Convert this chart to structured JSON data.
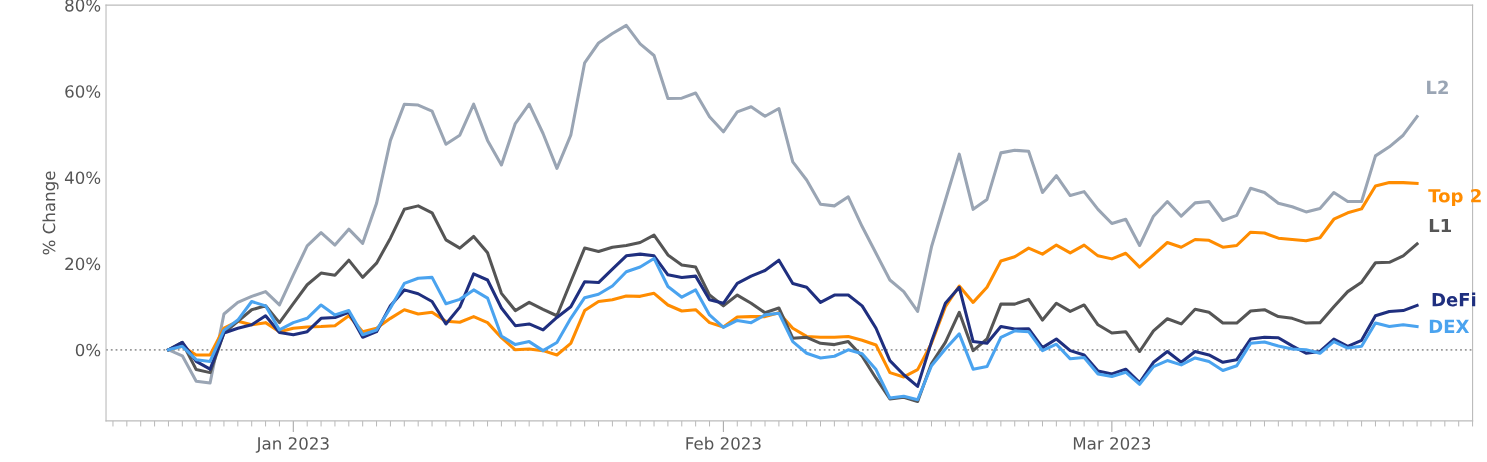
{
  "chart_data": {
    "type": "line",
    "ylabel": "% Change",
    "x": [
      "2022-12-23",
      "2022-12-24",
      "2022-12-25",
      "2022-12-26",
      "2022-12-27",
      "2022-12-28",
      "2022-12-29",
      "2022-12-30",
      "2022-12-31",
      "2023-01-01",
      "2023-01-02",
      "2023-01-03",
      "2023-01-04",
      "2023-01-05",
      "2023-01-06",
      "2023-01-07",
      "2023-01-08",
      "2023-01-09",
      "2023-01-10",
      "2023-01-11",
      "2023-01-12",
      "2023-01-13",
      "2023-01-14",
      "2023-01-15",
      "2023-01-16",
      "2023-01-17",
      "2023-01-18",
      "2023-01-19",
      "2023-01-20",
      "2023-01-21",
      "2023-01-22",
      "2023-01-23",
      "2023-01-24",
      "2023-01-25",
      "2023-01-26",
      "2023-01-27",
      "2023-01-28",
      "2023-01-29",
      "2023-01-30",
      "2023-01-31",
      "2023-02-01",
      "2023-02-02",
      "2023-02-03",
      "2023-02-04",
      "2023-02-05",
      "2023-02-06",
      "2023-02-07",
      "2023-02-08",
      "2023-02-09",
      "2023-02-10",
      "2023-02-11",
      "2023-02-12",
      "2023-02-13",
      "2023-02-14",
      "2023-02-15",
      "2023-02-16",
      "2023-02-17",
      "2023-02-18",
      "2023-02-19",
      "2023-02-20",
      "2023-02-21",
      "2023-02-22",
      "2023-02-23",
      "2023-02-24",
      "2023-02-25",
      "2023-02-26",
      "2023-02-27",
      "2023-02-28",
      "2023-03-01",
      "2023-03-02",
      "2023-03-03",
      "2023-03-04",
      "2023-03-05",
      "2023-03-06",
      "2023-03-07",
      "2023-03-08",
      "2023-03-09",
      "2023-03-10",
      "2023-03-11",
      "2023-03-12",
      "2023-03-13",
      "2023-03-14",
      "2023-03-15",
      "2023-03-16",
      "2023-03-17",
      "2023-03-18",
      "2023-03-19",
      "2023-03-20",
      "2023-03-21",
      "2023-03-22",
      "2023-03-23"
    ],
    "series": [
      {
        "name": "L2",
        "color": "#9aa5b4",
        "values": [
          0,
          -1.4,
          -7.3,
          -7.7,
          8.3,
          11.0,
          12.4,
          13.5,
          10.4,
          17.4,
          24.1,
          27.2,
          24.3,
          28.0,
          24.7,
          34.0,
          48.6,
          57.0,
          56.8,
          55.4,
          47.7,
          49.8,
          57.0,
          48.6,
          42.9,
          52.5,
          57.0,
          50.2,
          42.1,
          49.8,
          66.6,
          71.2,
          73.4,
          75.3,
          71.0,
          68.3,
          58.3,
          58.4,
          59.6,
          54.1,
          50.6,
          55.2,
          56.4,
          54.2,
          56.0,
          43.6,
          39.4,
          33.8,
          33.4,
          35.5,
          28.6,
          22.4,
          16.2,
          13.5,
          8.9,
          23.9,
          34.7,
          45.4,
          32.6,
          34.9,
          45.7,
          46.3,
          46.1,
          36.5,
          40.4,
          35.8,
          36.7,
          32.6,
          29.3,
          30.3,
          24.2,
          31.0,
          34.4,
          31.0,
          34.1,
          34.4,
          30.0,
          31.2,
          37.5,
          36.5,
          34.0,
          33.2,
          32.0,
          32.8,
          36.5,
          34.4,
          34.4,
          45.0,
          47.1,
          49.8,
          54.1
        ]
      },
      {
        "name": "Top 2",
        "color": "#ff8c00",
        "values": [
          0,
          0.8,
          -1.2,
          -1.2,
          5.0,
          6.6,
          5.8,
          6.3,
          4.2,
          5.0,
          5.3,
          5.4,
          5.6,
          7.9,
          4.2,
          5.0,
          7.3,
          9.3,
          8.3,
          8.7,
          6.6,
          6.4,
          7.7,
          6.3,
          2.8,
          0,
          0.2,
          -0.2,
          -1.2,
          1.5,
          9.1,
          11.2,
          11.6,
          12.5,
          12.4,
          13.1,
          10.4,
          9.0,
          9.3,
          6.3,
          5.3,
          7.6,
          7.7,
          7.7,
          8.6,
          5.0,
          3.1,
          2.9,
          2.9,
          3.1,
          2.2,
          1.1,
          -5.3,
          -6.3,
          -4.6,
          1.5,
          10.0,
          14.8,
          11.0,
          14.5,
          20.6,
          21.6,
          23.6,
          22.2,
          24.3,
          22.5,
          24.3,
          21.8,
          21.1,
          22.4,
          19.2,
          22.0,
          24.9,
          23.8,
          25.6,
          25.4,
          23.8,
          24.2,
          27.3,
          27.1,
          25.9,
          25.6,
          25.3,
          26.0,
          30.3,
          31.8,
          32.7,
          38.0,
          38.8,
          38.8,
          38.6
        ]
      },
      {
        "name": "L1",
        "color": "#555555",
        "values": [
          0,
          1.7,
          -4.6,
          -5.3,
          3.9,
          6.6,
          9.3,
          10.2,
          6.3,
          10.7,
          15.1,
          17.8,
          17.3,
          20.8,
          16.8,
          20.1,
          25.9,
          32.6,
          33.4,
          31.8,
          25.5,
          23.6,
          26.3,
          22.5,
          13.1,
          9.1,
          11.0,
          9.4,
          7.9,
          15.8,
          23.6,
          22.8,
          23.8,
          24.2,
          24.9,
          26.6,
          22.0,
          19.7,
          19.2,
          12.7,
          10.2,
          12.7,
          10.8,
          8.6,
          9.7,
          2.7,
          2.9,
          1.5,
          1.2,
          1.9,
          -1.5,
          -6.6,
          -11.4,
          -11.0,
          -12.0,
          -3.2,
          1.7,
          8.7,
          -0.2,
          2.5,
          10.6,
          10.6,
          11.7,
          6.9,
          10.8,
          8.9,
          10.4,
          5.8,
          3.9,
          4.2,
          -0.4,
          4.4,
          7.2,
          6.0,
          9.4,
          8.7,
          6.2,
          6.2,
          9.0,
          9.3,
          7.7,
          7.3,
          6.2,
          6.3,
          10.0,
          13.5,
          15.7,
          20.2,
          20.3,
          21.8,
          24.6
        ]
      },
      {
        "name": "DeFi",
        "color": "#1f2f7f",
        "values": [
          0,
          1.7,
          -2.7,
          -4.5,
          3.9,
          5.0,
          5.8,
          7.9,
          4.0,
          3.5,
          4.2,
          7.3,
          7.5,
          8.7,
          2.9,
          4.2,
          10.2,
          13.9,
          13.0,
          11.2,
          6.0,
          9.9,
          17.6,
          16.2,
          9.7,
          5.6,
          6.0,
          4.6,
          7.5,
          10.0,
          15.8,
          15.6,
          18.7,
          21.8,
          22.2,
          21.8,
          17.4,
          16.8,
          17.1,
          11.6,
          10.8,
          15.4,
          17.1,
          18.4,
          20.8,
          15.4,
          14.5,
          11.0,
          12.7,
          12.7,
          10.2,
          5.0,
          -2.5,
          -5.8,
          -8.5,
          1.9,
          10.8,
          14.5,
          1.9,
          1.5,
          5.4,
          4.8,
          4.9,
          0.5,
          2.5,
          -0.2,
          -1.2,
          -4.9,
          -5.6,
          -4.5,
          -7.6,
          -2.9,
          -0.4,
          -2.9,
          -0.4,
          -1.2,
          -2.9,
          -2.3,
          2.5,
          2.9,
          2.8,
          0.9,
          -0.8,
          -0.4,
          2.5,
          0.8,
          2.2,
          7.9,
          8.9,
          9.1,
          10.3
        ]
      },
      {
        "name": "DEX",
        "color": "#4aa3ef",
        "values": [
          0,
          0.8,
          -2.3,
          -2.7,
          4.5,
          6.9,
          11.2,
          10.2,
          4.6,
          6.3,
          7.3,
          10.4,
          8.1,
          9.1,
          3.5,
          4.6,
          9.7,
          15.4,
          16.6,
          16.8,
          10.7,
          11.7,
          13.9,
          12.0,
          3.2,
          1.2,
          1.9,
          -0.2,
          1.7,
          7.3,
          12.1,
          12.9,
          14.8,
          18.1,
          19.2,
          21.2,
          14.7,
          12.2,
          13.9,
          8.1,
          5.2,
          6.8,
          6.3,
          8.1,
          8.5,
          1.9,
          -0.8,
          -1.9,
          -1.5,
          0,
          -0.9,
          -4.6,
          -11.2,
          -10.8,
          -11.6,
          -3.7,
          0.2,
          3.7,
          -4.5,
          -3.9,
          2.9,
          4.4,
          4.2,
          -0.2,
          1.3,
          -2.1,
          -1.8,
          -5.6,
          -6.2,
          -5.2,
          -8.0,
          -3.9,
          -2.5,
          -3.5,
          -1.9,
          -2.7,
          -4.8,
          -3.7,
          1.5,
          1.8,
          0.9,
          0.2,
          0,
          -0.8,
          1.9,
          0.4,
          0.8,
          6.2,
          5.4,
          5.8,
          5.4
        ]
      }
    ],
    "xlim": [
      "2022-12-18T12:00",
      "2023-03-27"
    ],
    "xticks": [
      {
        "value": "2023-01-01",
        "label": "Jan 2023"
      },
      {
        "value": "2023-02-01",
        "label": "Feb 2023"
      },
      {
        "value": "2023-03-01",
        "label": "Mar 2023"
      }
    ],
    "ylim": [
      -16.5,
      80
    ],
    "yticks": [
      {
        "value": 0,
        "label": "0%"
      },
      {
        "value": 20,
        "label": "20%"
      },
      {
        "value": 40,
        "label": "40%"
      },
      {
        "value": 60,
        "label": "60%"
      },
      {
        "value": 80,
        "label": "80%"
      }
    ],
    "ref_lines": [
      {
        "axis": "y",
        "value": 0,
        "color": "#999999",
        "line_style": "dotted"
      }
    ],
    "grid": false,
    "legend": false,
    "marker": "none",
    "line_style": "solid"
  }
}
